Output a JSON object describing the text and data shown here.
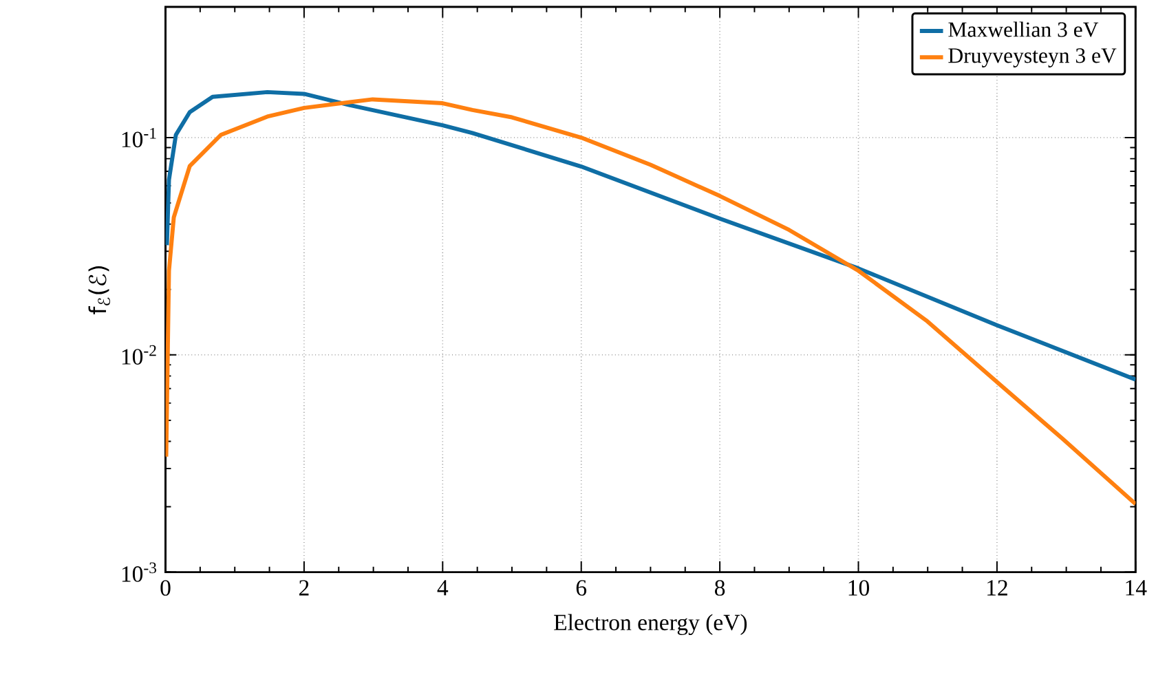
{
  "chart_data": {
    "type": "line",
    "xlabel": "Electron energy (eV)",
    "ylabel": "f$_{ℰ}$(ℰ)",
    "log": "y",
    "xlim": [
      0,
      14
    ],
    "ylim": [
      0.001,
      0.4
    ],
    "xticks": [
      0,
      2,
      4,
      6,
      8,
      10,
      12,
      14
    ],
    "yticks": [
      {
        "value": 0.001,
        "label": "10$^{-3}$"
      },
      {
        "value": 0.01,
        "label": "10$^{-2}$"
      },
      {
        "value": 0.1,
        "label": "10$^{-1}$"
      }
    ],
    "grid": true,
    "legend": "top right",
    "line_style": "solid",
    "marker": "none",
    "series": [
      {
        "name": "Maxwellian 3 eV",
        "color": "#0f6ea5",
        "x": [
          0.02,
          0.05,
          0.15,
          0.35,
          0.68,
          1.47,
          2.0,
          2.66,
          4.0,
          4.43,
          6.0,
          8.0,
          10.0,
          12.0,
          14.0
        ],
        "values": [
          0.032,
          0.064,
          0.103,
          0.131,
          0.154,
          0.162,
          0.159,
          0.141,
          0.114,
          0.105,
          0.0736,
          0.0424,
          0.025,
          0.0137,
          0.0077
        ]
      },
      {
        "name": "Druyveysteyn 3 eV",
        "color": "#ff8010",
        "x": [
          0.01,
          0.05,
          0.12,
          0.35,
          0.8,
          1.47,
          2.0,
          2.99,
          4.0,
          4.43,
          5.0,
          6.0,
          7.0,
          8.0,
          9.0,
          10.0,
          10.98,
          12.0,
          12.95,
          14.0
        ],
        "values": [
          0.0034,
          0.0244,
          0.043,
          0.074,
          0.103,
          0.125,
          0.137,
          0.15,
          0.144,
          0.134,
          0.124,
          0.1,
          0.075,
          0.0539,
          0.0376,
          0.0244,
          0.0144,
          0.0075,
          0.0041,
          0.00206
        ]
      }
    ]
  }
}
